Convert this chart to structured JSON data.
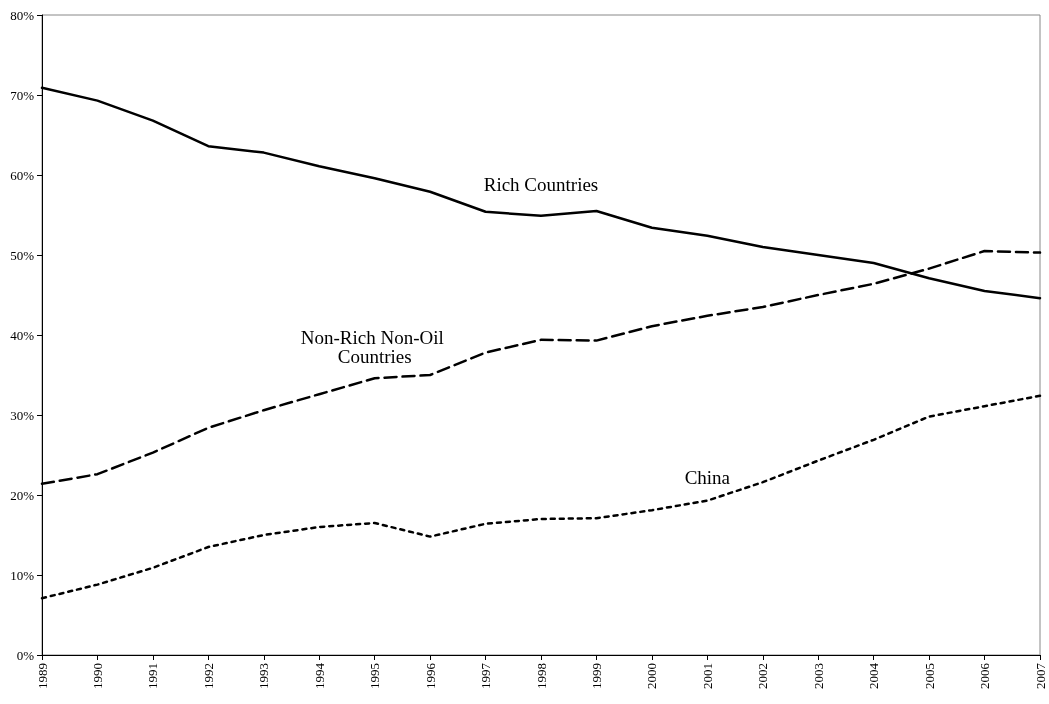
{
  "chart_data": {
    "type": "line",
    "categories": [
      "1989",
      "1990",
      "1991",
      "1992",
      "1993",
      "1994",
      "1995",
      "1996",
      "1997",
      "1998",
      "1999",
      "2000",
      "2001",
      "2002",
      "2003",
      "2004",
      "2005",
      "2006",
      "2007"
    ],
    "ylim": [
      0,
      80
    ],
    "yticks": [
      {
        "value": 0,
        "label": "0%"
      },
      {
        "value": 10,
        "label": "10%"
      },
      {
        "value": 20,
        "label": "20%"
      },
      {
        "value": 30,
        "label": "30%"
      },
      {
        "value": 40,
        "label": "40%"
      },
      {
        "value": 50,
        "label": "50%"
      },
      {
        "value": 60,
        "label": "60%"
      },
      {
        "value": 70,
        "label": "70%"
      },
      {
        "value": 80,
        "label": "80%"
      }
    ],
    "grid": false,
    "legend": false,
    "marker": "none",
    "series": [
      {
        "name": "Rich Countries",
        "color": "#000000",
        "line_style": "solid",
        "values": [
          70.9,
          69.3,
          66.8,
          63.6,
          62.8,
          61.1,
          59.6,
          57.9,
          55.4,
          54.9,
          55.5,
          53.4,
          52.4,
          51,
          50,
          49,
          47.1,
          45.5,
          44.6
        ]
      },
      {
        "name": "Non-Rich Non-Oil Countries",
        "color": "#000000",
        "line_style": "dashed",
        "values": [
          21.4,
          22.6,
          25.3,
          28.4,
          30.6,
          32.6,
          34.6,
          35,
          37.8,
          39.4,
          39.3,
          41.1,
          42.4,
          43.5,
          45,
          46.4,
          48.3,
          50.5,
          50.3
        ]
      },
      {
        "name": "China",
        "color": "#000000",
        "line_style": "dotted",
        "values": [
          7.1,
          8.8,
          10.9,
          13.5,
          15,
          16,
          16.5,
          14.8,
          16.4,
          17,
          17.1,
          18.1,
          19.3,
          21.6,
          24.3,
          26.9,
          29.8,
          31.1,
          32.4
        ]
      }
    ]
  }
}
